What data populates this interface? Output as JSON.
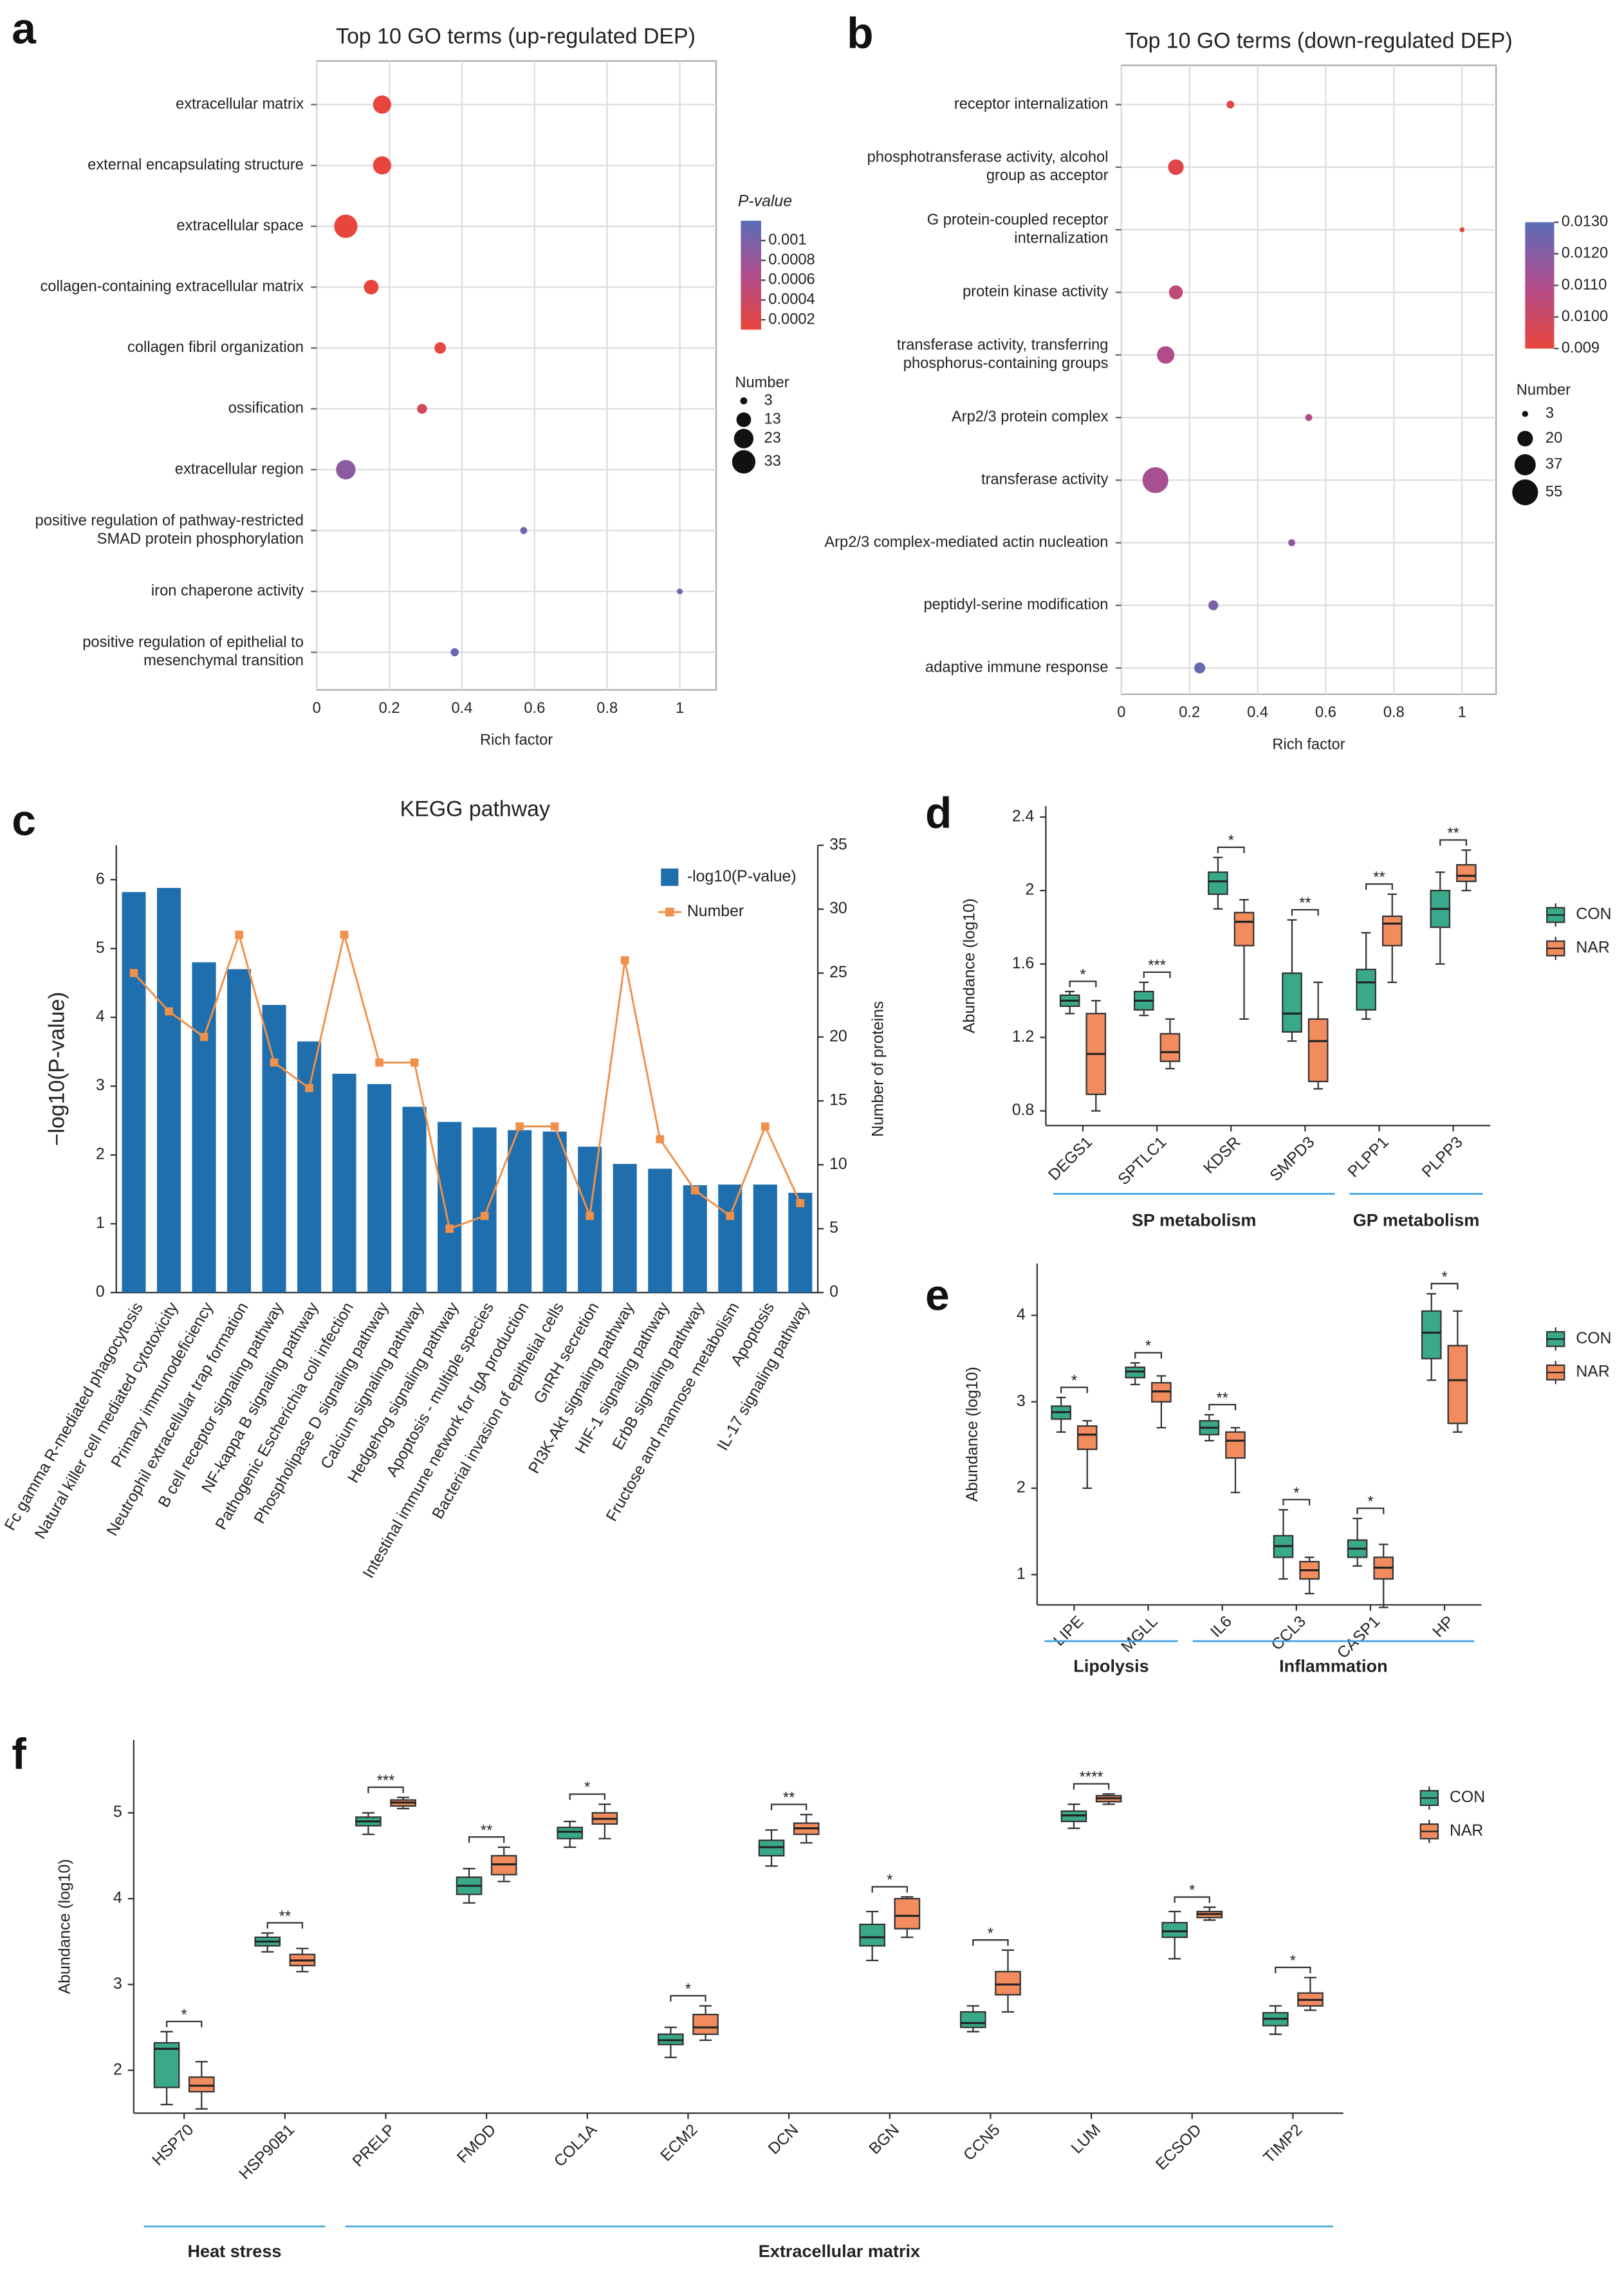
{
  "chart_data": [
    {
      "type": "bubble",
      "panel": "a",
      "title": "Top 10 GO terms (up-regulated DEP)",
      "xlabel": "Rich factor",
      "categories": [
        "extracellular matrix",
        "external encapsulating structure",
        "extracellular space",
        "collagen-containing extracellular matrix",
        "collagen fibril organization",
        "ossification",
        "extracellular region",
        "positive regulation of pathway-restricted\nSMAD protein phosphorylation",
        "iron chaperone activity",
        "positive regulation of epithelial to\nmesenchymal transition"
      ],
      "values": [
        0.18,
        0.18,
        0.08,
        0.15,
        0.34,
        0.29,
        0.08,
        0.57,
        1.0,
        0.38
      ],
      "sizes": [
        20,
        20,
        33,
        13,
        8,
        6,
        23,
        3,
        2,
        4
      ],
      "pvalues": [
        0.0001,
        0.0001,
        0.0001,
        0.0001,
        0.0001,
        0.0003,
        0.0009,
        0.0011,
        0.0011,
        0.0011
      ],
      "xlim": [
        0,
        1.1
      ],
      "xticks": [
        0,
        0.2,
        0.4,
        0.6,
        0.8,
        1
      ],
      "colormap": [
        "#e8453c",
        "#b04c8c",
        "#5b6db8"
      ],
      "clim": [
        0.0001,
        0.0012
      ],
      "colorbar_title": "P-value",
      "colorbar_ticks": [
        0.001,
        0.0008,
        0.0006,
        0.0004,
        0.0002
      ],
      "size_legend_title": "Number",
      "size_legend": [
        3,
        13,
        23,
        33
      ]
    },
    {
      "type": "bubble",
      "panel": "b",
      "title": "Top 10 GO terms (down-regulated DEP)",
      "xlabel": "Rich factor",
      "categories": [
        "receptor internalization",
        "phosphotransferase activity, alcohol\ngroup as acceptor",
        "G protein-coupled receptor\ninternalization",
        "protein kinase activity",
        "transferase activity, transferring\nphosphorus-containing groups",
        "Arp2/3 protein complex",
        "transferase activity",
        "Arp2/3 complex-mediated actin nucleation",
        "peptidyl-serine modification",
        "adaptive immune response"
      ],
      "values": [
        0.32,
        0.16,
        1.0,
        0.16,
        0.13,
        0.55,
        0.1,
        0.5,
        0.27,
        0.23
      ],
      "sizes": [
        5,
        20,
        2,
        16,
        25,
        4,
        55,
        4,
        8,
        10
      ],
      "pvalues": [
        0.0092,
        0.0093,
        0.0092,
        0.0105,
        0.011,
        0.0108,
        0.0112,
        0.0118,
        0.0122,
        0.0127
      ],
      "xlim": [
        0,
        1.1
      ],
      "xticks": [
        0,
        0.2,
        0.4,
        0.6,
        0.8,
        1
      ],
      "colormap": [
        "#e8453c",
        "#b04c8c",
        "#5b6db8"
      ],
      "clim": [
        0.009,
        0.013
      ],
      "colorbar_ticks": [
        {
          "value": 0.013,
          "label": "0.0130"
        },
        {
          "value": 0.012,
          "label": "0.0120"
        },
        {
          "value": 0.011,
          "label": "0.0110"
        },
        {
          "value": 0.01,
          "label": "0.0100"
        },
        0.009
      ],
      "size_legend_title": "Number",
      "size_legend": [
        3,
        20,
        37,
        55
      ]
    },
    {
      "type": "bar",
      "panel": "c",
      "title": "KEGG pathway",
      "ylabel": "−log10(P-value)",
      "y2label": "Number of proteins",
      "categories": [
        "Fc gamma R-mediated phagocytosis",
        "Natural killer cell mediated cytotoxicity",
        "Primary immunodeficiency",
        "Neutrophil extracellular trap formation",
        "B cell receptor signaling pathway",
        "NF-kappa B signaling pathway",
        "Pathogenic Escherichia coli infection",
        "Phospholipase D signaling pathway",
        "Calcium signaling pathway",
        "Hedgehog signaling pathway",
        "Apoptosis - multiple species",
        "Intestinal immune network for IgA production",
        "Bacterial invasion of epithelial cells",
        "GnRH secretion",
        "PI3K-Akt signaling pathway",
        "HIF-1 signaling pathway",
        "ErbB signaling pathway",
        "Fructose and mannose metabolism",
        "Apoptosis",
        "IL-17 signaling pathway"
      ],
      "series": [
        {
          "name": "-log10(P-value)",
          "color": "#1f6fae",
          "values": [
            5.82,
            5.88,
            4.8,
            4.7,
            4.18,
            3.65,
            3.18,
            3.03,
            2.7,
            2.48,
            2.4,
            2.36,
            2.34,
            2.12,
            1.87,
            1.8,
            1.56,
            1.57,
            1.57,
            1.45
          ]
        },
        {
          "name": "Number",
          "color": "#f0904a",
          "type": "line",
          "axis": "y2",
          "values": [
            25,
            22,
            20,
            28,
            18,
            16,
            28,
            18,
            18,
            5,
            6,
            13,
            13,
            6,
            26,
            12,
            8,
            6,
            13,
            7
          ]
        }
      ],
      "ylim": [
        0,
        6.5
      ],
      "yticks": [
        0,
        1,
        2,
        3,
        4,
        5,
        6
      ],
      "y2lim": [
        0,
        35
      ],
      "y2ticks": [
        0,
        5,
        10,
        15,
        20,
        25,
        30,
        35
      ]
    },
    {
      "type": "box",
      "panel": "d",
      "ylabel": "Abundance (log10)",
      "categories": [
        "DEGS1",
        "SPTLC1",
        "KDSR",
        "SMPD3",
        "PLPP1",
        "PLPP3"
      ],
      "series": [
        {
          "name": "CON",
          "color": "#3aa98a",
          "values": [
            [
              1.33,
              1.37,
              1.4,
              1.43,
              1.45
            ],
            [
              1.32,
              1.35,
              1.4,
              1.45,
              1.5
            ],
            [
              1.9,
              1.98,
              2.05,
              2.1,
              2.18
            ],
            [
              1.18,
              1.23,
              1.33,
              1.55,
              1.84
            ],
            [
              1.3,
              1.35,
              1.5,
              1.57,
              1.77
            ],
            [
              1.6,
              1.8,
              1.9,
              2.0,
              2.1
            ]
          ]
        },
        {
          "name": "NAR",
          "color": "#f28c5e",
          "values": [
            [
              0.8,
              0.89,
              1.11,
              1.33,
              1.4
            ],
            [
              1.03,
              1.07,
              1.12,
              1.22,
              1.3
            ],
            [
              1.3,
              1.7,
              1.83,
              1.88,
              1.95
            ],
            [
              0.92,
              0.96,
              1.18,
              1.3,
              1.5
            ],
            [
              1.5,
              1.7,
              1.82,
              1.86,
              1.98
            ],
            [
              2.0,
              2.05,
              2.08,
              2.14,
              2.22
            ]
          ]
        }
      ],
      "significance": [
        "*",
        "***",
        "*",
        "**",
        "**",
        "**"
      ],
      "groups": [
        {
          "label": "SP metabolism",
          "members": [
            "DEGS1",
            "SPTLC1",
            "KDSR",
            "SMPD3"
          ]
        },
        {
          "label": "GP metabolism",
          "members": [
            "PLPP1",
            "PLPP3"
          ]
        }
      ],
      "ylim": [
        0.72,
        2.46
      ],
      "yticks": [
        0.8,
        1.2,
        1.6,
        2,
        2.4
      ]
    },
    {
      "type": "box",
      "panel": "e",
      "ylabel": "Abundance (log10)",
      "categories": [
        "LIPE",
        "MGLL",
        "IL6",
        "CCL3",
        "CASP1",
        "HP"
      ],
      "series": [
        {
          "name": "CON",
          "color": "#3aa98a",
          "values": [
            [
              2.65,
              2.8,
              2.88,
              2.95,
              3.05
            ],
            [
              3.2,
              3.28,
              3.35,
              3.4,
              3.45
            ],
            [
              2.55,
              2.62,
              2.7,
              2.78,
              2.85
            ],
            [
              0.95,
              1.2,
              1.33,
              1.45,
              1.75
            ],
            [
              1.1,
              1.2,
              1.3,
              1.4,
              1.65
            ],
            [
              3.25,
              3.5,
              3.8,
              4.05,
              4.25
            ]
          ]
        },
        {
          "name": "NAR",
          "color": "#f28c5e",
          "values": [
            [
              2.0,
              2.45,
              2.62,
              2.72,
              2.78
            ],
            [
              2.7,
              3.0,
              3.12,
              3.22,
              3.3
            ],
            [
              1.95,
              2.35,
              2.55,
              2.65,
              2.7
            ],
            [
              0.78,
              0.95,
              1.05,
              1.15,
              1.2
            ],
            [
              0.62,
              0.95,
              1.08,
              1.2,
              1.35
            ],
            [
              2.65,
              2.75,
              3.25,
              3.65,
              4.05
            ]
          ]
        }
      ],
      "significance": [
        "*",
        "*",
        "**",
        "*",
        "*",
        "*"
      ],
      "groups": [
        {
          "label": "Lipolysis",
          "members": [
            "LIPE",
            "MGLL"
          ]
        },
        {
          "label": "Inflammation",
          "members": [
            "IL6",
            "CCL3",
            "CASP1",
            "HP"
          ]
        }
      ],
      "ylim": [
        0.65,
        4.6
      ],
      "yticks": [
        1,
        2,
        3,
        4
      ]
    },
    {
      "type": "box",
      "panel": "f",
      "ylabel": "Abundance (log10)",
      "categories": [
        "HSP70",
        "HSP90B1",
        "PRELP",
        "FMOD",
        "COL1A",
        "ECM2",
        "DCN",
        "BGN",
        "CCN5",
        "LUM",
        "ECSOD",
        "TIMP2"
      ],
      "series": [
        {
          "name": "CON",
          "color": "#3aa98a",
          "values": [
            [
              1.6,
              1.8,
              2.25,
              2.32,
              2.45
            ],
            [
              3.38,
              3.45,
              3.5,
              3.55,
              3.6
            ],
            [
              4.75,
              4.85,
              4.9,
              4.95,
              5.0
            ],
            [
              3.95,
              4.05,
              4.15,
              4.25,
              4.35
            ],
            [
              4.6,
              4.7,
              4.78,
              4.83,
              4.9
            ],
            [
              2.15,
              2.3,
              2.35,
              2.42,
              2.5
            ],
            [
              4.38,
              4.5,
              4.6,
              4.68,
              4.8
            ],
            [
              3.28,
              3.45,
              3.55,
              3.7,
              3.85
            ],
            [
              2.45,
              2.5,
              2.55,
              2.68,
              2.75
            ],
            [
              4.82,
              4.9,
              4.97,
              5.02,
              5.1
            ],
            [
              3.3,
              3.55,
              3.62,
              3.72,
              3.85
            ],
            [
              2.42,
              2.52,
              2.6,
              2.67,
              2.75
            ]
          ]
        },
        {
          "name": "NAR",
          "color": "#f28c5e",
          "values": [
            [
              1.55,
              1.75,
              1.82,
              1.92,
              2.1
            ],
            [
              3.15,
              3.22,
              3.28,
              3.35,
              3.42
            ],
            [
              5.05,
              5.08,
              5.12,
              5.15,
              5.18
            ],
            [
              4.2,
              4.28,
              4.4,
              4.5,
              4.6
            ],
            [
              4.7,
              4.87,
              4.93,
              5.0,
              5.1
            ],
            [
              2.35,
              2.42,
              2.5,
              2.65,
              2.75
            ],
            [
              4.65,
              4.75,
              4.82,
              4.88,
              4.98
            ],
            [
              3.55,
              3.65,
              3.8,
              4.0,
              4.02
            ],
            [
              2.68,
              2.88,
              3.0,
              3.15,
              3.4
            ],
            [
              5.1,
              5.13,
              5.17,
              5.2,
              5.22
            ],
            [
              3.75,
              3.78,
              3.82,
              3.85,
              3.9
            ],
            [
              2.7,
              2.75,
              2.82,
              2.9,
              3.08
            ]
          ]
        }
      ],
      "significance": [
        "*",
        "**",
        "***",
        "**",
        "*",
        "*",
        "**",
        "*",
        "*",
        "****",
        "*",
        "*"
      ],
      "groups": [
        {
          "label": "Heat stress",
          "members": [
            "HSP70",
            "HSP90B1"
          ]
        },
        {
          "label": "Extracellular matrix",
          "members": [
            "PRELP",
            "FMOD",
            "COL1A",
            "ECM2",
            "DCN",
            "BGN",
            "CCN5",
            "LUM",
            "ECSOD",
            "TIMP2"
          ]
        }
      ],
      "ylim": [
        1.5,
        5.85
      ],
      "yticks": [
        2,
        3,
        4,
        5
      ]
    }
  ]
}
